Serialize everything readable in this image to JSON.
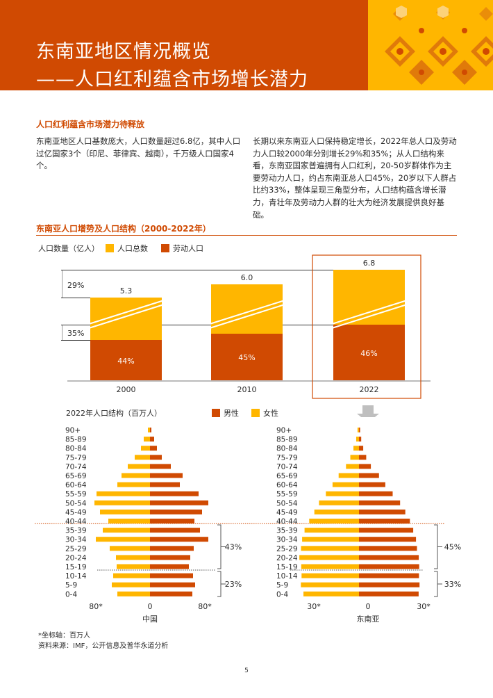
{
  "header": {
    "title_line1": "东南亚地区情况概览",
    "title_line2": "——人口红利蕴含市场增长潜力"
  },
  "section1": {
    "title": "人口红利蕴含市场潜力待释放",
    "para_left": "东南亚地区人口基数庞大，人口数量超过6.8亿，其中人口过亿国家3个（印尼、菲律宾、越南），千万级人口国家4个。",
    "para_right": "长期以来东南亚人口保持稳定增长，2022年总人口及劳动力人口较2000年分别增长29%和35%；从人口结构来看，东南亚国家普遍拥有人口红利，20-50岁群体作为主要劳动力人口，约占东南亚总人口45%，20岁以下人群占比约33%，整体呈现三角型分布，人口结构蕴含增长潜力，青壮年及劳动力人群的壮大为经济发展提供良好基础。"
  },
  "section2": {
    "title": "东南亚人口增势及人口结构（2000-2022年）"
  },
  "colors": {
    "accent": "#d04a02",
    "yellow": "#ffb600"
  },
  "chart_data": [
    {
      "type": "bar",
      "ylabel": "人口数量（亿人）",
      "categories": [
        "2000",
        "2010",
        "2022"
      ],
      "series": [
        {
          "name": "人口总数",
          "values": [
            5.3,
            6.0,
            6.8
          ]
        },
        {
          "name": "劳动人口",
          "share_labels": [
            "44%",
            "45%",
            "46%"
          ]
        }
      ],
      "total_labels": [
        "5.3",
        "6.0",
        "6.8"
      ],
      "growth_annotations": {
        "total": "29%",
        "labor": "35%"
      },
      "legend": [
        "人口总数",
        "劳动人口"
      ]
    },
    {
      "type": "bar",
      "subtype": "population-pyramid",
      "title": "2022年人口结构（百万人）",
      "legend": [
        "男性",
        "女性"
      ],
      "age_groups": [
        "90+",
        "85-89",
        "80-84",
        "75-79",
        "70-74",
        "65-69",
        "60-64",
        "55-59",
        "50-54",
        "45-49",
        "40-44",
        "35-39",
        "30-34",
        "25-29",
        "20-24",
        "15-19",
        "10-14",
        "5-9",
        "0-4"
      ],
      "panels": [
        {
          "name": "中国",
          "axis_ticks": [
            "80*",
            "0",
            "80*"
          ],
          "female": [
            3,
            9,
            13,
            22,
            32,
            41,
            47,
            77,
            80,
            72,
            60,
            68,
            78,
            58,
            49,
            48,
            53,
            55,
            47
          ],
          "male": [
            2,
            6,
            10,
            17,
            30,
            47,
            43,
            70,
            84,
            75,
            64,
            72,
            84,
            63,
            58,
            56,
            62,
            65,
            61
          ],
          "brackets": [
            "43%",
            "23%"
          ]
        },
        {
          "name": "东南亚",
          "axis_ticks": [
            "30*",
            "0",
            "30*"
          ],
          "female": [
            0.8,
            1.5,
            3,
            4.7,
            7,
            11,
            14.3,
            17.9,
            21.6,
            24.1,
            26.9,
            29.4,
            30.7,
            31.3,
            32.2,
            31.2,
            31,
            31.4,
            30
          ],
          "male": [
            0.6,
            1.2,
            2.3,
            3.9,
            6.4,
            10.8,
            14.2,
            18.2,
            22.2,
            25,
            27.5,
            29.3,
            30.8,
            31.3,
            32.3,
            32.5,
            32.4,
            32.7,
            32.2
          ],
          "brackets": [
            "45%",
            "33%"
          ]
        }
      ]
    }
  ],
  "notes": {
    "line1": "*坐标轴：百万人",
    "line2": "资料来源：IMF，公开信息及普华永道分析"
  },
  "page_number": "5"
}
